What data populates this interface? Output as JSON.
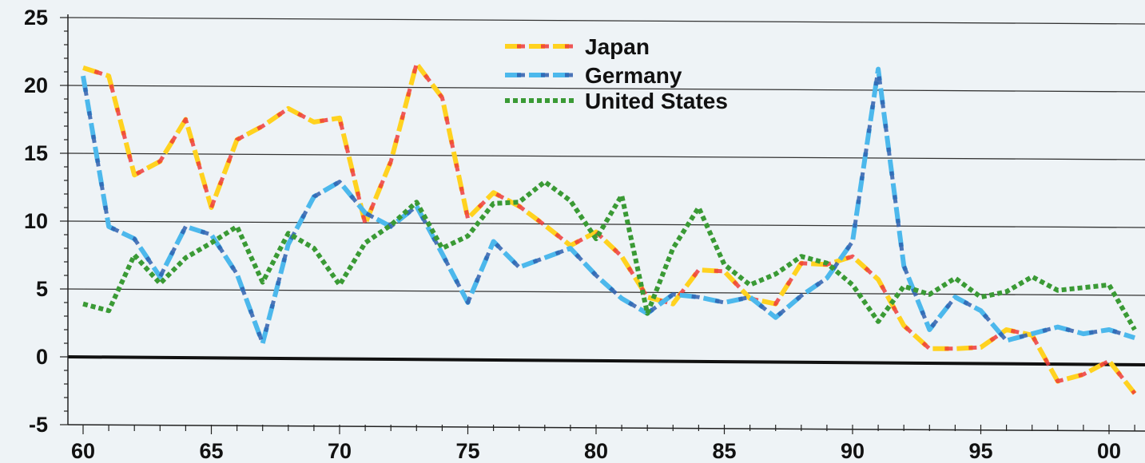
{
  "chart_data": {
    "type": "line",
    "title": "",
    "xlabel": "",
    "ylabel": "",
    "ylim": [
      -5,
      25
    ],
    "xlim": [
      1960,
      2002
    ],
    "grid": true,
    "legend_position": "top-center",
    "y_ticks": [
      "25",
      "20",
      "15",
      "10",
      "5",
      "0",
      "-5"
    ],
    "x_ticks": [
      "60",
      "65",
      "70",
      "75",
      "80",
      "85",
      "90",
      "95",
      "00"
    ],
    "x": [
      1960,
      1961,
      1962,
      1963,
      1964,
      1965,
      1966,
      1967,
      1968,
      1969,
      1970,
      1971,
      1972,
      1973,
      1974,
      1975,
      1976,
      1977,
      1978,
      1979,
      1980,
      1981,
      1982,
      1983,
      1984,
      1985,
      1986,
      1987,
      1988,
      1989,
      1990,
      1991,
      1992,
      1993,
      1994,
      1995,
      1996,
      1997,
      1998,
      1999,
      2000,
      2001
    ],
    "series": [
      {
        "name": "Japan",
        "color": "#ffd21f",
        "dash_color": "#ee3b3b",
        "values": [
          21.3,
          20.7,
          13.4,
          14.4,
          17.5,
          11.0,
          16.0,
          17.0,
          18.3,
          17.3,
          17.6,
          9.8,
          14.4,
          21.6,
          19.1,
          10.2,
          12.1,
          11.1,
          9.7,
          8.2,
          9.2,
          7.4,
          4.4,
          3.9,
          6.4,
          6.3,
          4.3,
          3.9,
          6.9,
          6.8,
          7.4,
          5.7,
          2.3,
          0.6,
          0.6,
          0.7,
          2.0,
          1.6,
          -1.8,
          -1.3,
          -0.3,
          -2.7
        ]
      },
      {
        "name": "Germany",
        "color": "#4cb8ec",
        "dash_color": "#2f5fae",
        "values": [
          20.7,
          9.6,
          8.7,
          5.9,
          9.6,
          9.0,
          6.1,
          1.0,
          8.3,
          11.8,
          12.9,
          10.6,
          9.6,
          11.1,
          7.6,
          4.0,
          8.5,
          6.6,
          7.3,
          8.0,
          6.0,
          4.3,
          3.2,
          4.6,
          4.4,
          4.0,
          4.4,
          2.9,
          4.5,
          5.8,
          8.5,
          21.2,
          6.7,
          2.0,
          4.4,
          3.4,
          1.2,
          1.7,
          2.2,
          1.7,
          2.0,
          1.4
        ]
      },
      {
        "name": "United States",
        "color": "#3a9a35",
        "values": [
          3.9,
          3.4,
          7.5,
          5.4,
          7.3,
          8.4,
          9.6,
          5.5,
          9.1,
          8.0,
          5.3,
          8.4,
          9.7,
          11.4,
          8.0,
          8.9,
          11.3,
          11.4,
          12.9,
          11.5,
          8.7,
          11.9,
          3.2,
          8.0,
          11.0,
          6.8,
          5.3,
          6.1,
          7.4,
          6.9,
          5.3,
          2.6,
          5.2,
          4.6,
          5.8,
          4.4,
          4.8,
          5.9,
          4.9,
          5.1,
          5.3,
          2.0
        ]
      }
    ]
  }
}
